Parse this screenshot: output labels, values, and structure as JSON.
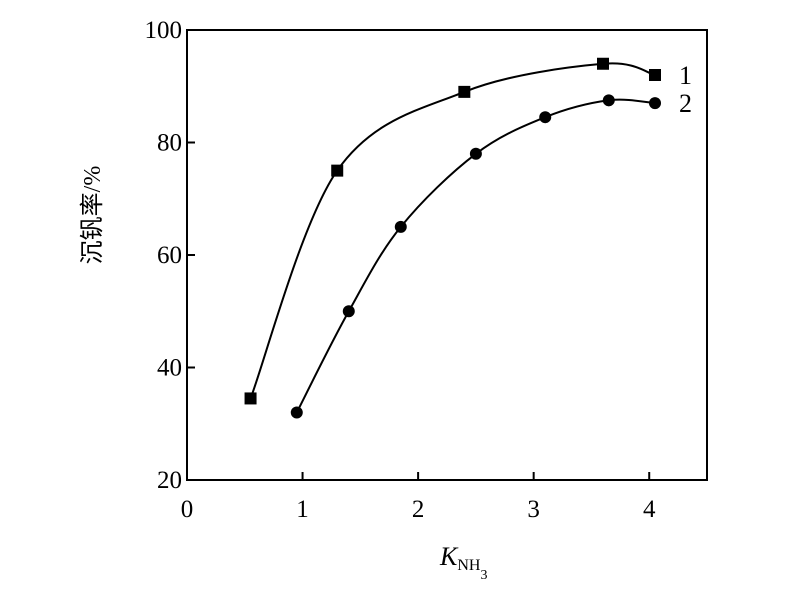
{
  "chart_data": {
    "type": "line",
    "title": "",
    "xlabel": "K",
    "xlabel_sub": "NH",
    "xlabel_subsub": "3",
    "ylabel": "沉钒率/%",
    "xlim": [
      0,
      4.5
    ],
    "ylim": [
      20,
      100
    ],
    "xticks": [
      0,
      1,
      2,
      3,
      4
    ],
    "yticks": [
      20,
      40,
      60,
      80,
      100
    ],
    "grid": false,
    "series": [
      {
        "name": "1",
        "marker": "square",
        "x": [
          0.55,
          1.3,
          2.4,
          3.6,
          4.05
        ],
        "y": [
          34.5,
          75,
          89,
          94,
          92
        ]
      },
      {
        "name": "2",
        "marker": "circle",
        "x": [
          0.95,
          1.4,
          1.85,
          2.5,
          3.1,
          3.65,
          4.05
        ],
        "y": [
          32,
          50,
          65,
          78,
          84.5,
          87.5,
          87
        ]
      }
    ]
  }
}
